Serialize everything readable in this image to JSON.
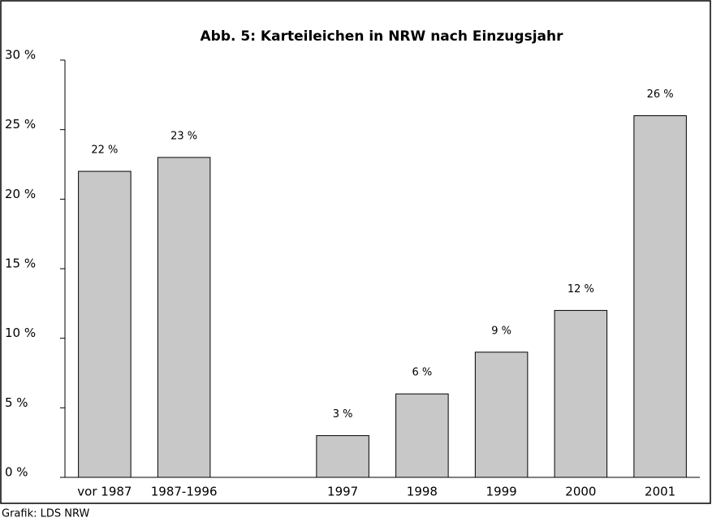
{
  "chart_data": {
    "type": "bar",
    "title": "Abb. 5: Karteileichen in NRW nach Einzugsjahr",
    "source": "Grafik: LDS NRW",
    "categories": [
      "vor 1987",
      "1987-1996",
      null,
      "1997",
      "1998",
      "1999",
      "2000",
      "2001"
    ],
    "values": [
      22,
      23,
      null,
      3,
      6,
      9,
      12,
      26
    ],
    "value_labels": [
      "22 %",
      "23 %",
      null,
      "3 %",
      "6 %",
      "9 %",
      "12 %",
      "26 %"
    ],
    "color": "#c8c8c8",
    "ylim": [
      0,
      30
    ],
    "yticks": [
      {
        "value": 0,
        "label": "0 %"
      },
      {
        "value": 5,
        "label": "5 %"
      },
      {
        "value": 10,
        "label": "10 %"
      },
      {
        "value": 15,
        "label": "15 %"
      },
      {
        "value": 20,
        "label": "20 %"
      },
      {
        "value": 25,
        "label": "25 %"
      },
      {
        "value": 30,
        "label": "30 %"
      }
    ],
    "grid": false
  }
}
